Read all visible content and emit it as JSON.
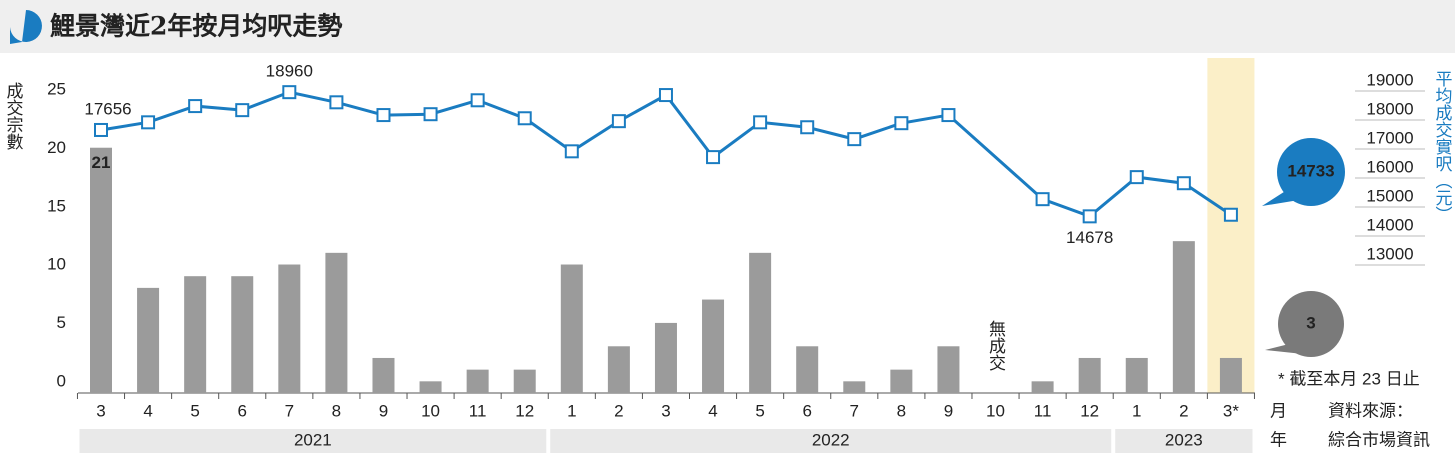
{
  "chart_data": {
    "type": "bar-line",
    "title": "鯉景灣近2年按月均呎走勢",
    "categories": [
      "3",
      "4",
      "5",
      "6",
      "7",
      "8",
      "9",
      "10",
      "11",
      "12",
      "1",
      "2",
      "3",
      "4",
      "5",
      "6",
      "7",
      "8",
      "9",
      "10",
      "11",
      "12",
      "1",
      "2",
      "3*"
    ],
    "groups": [
      {
        "label": "2021",
        "size": 10
      },
      {
        "label": "2022",
        "size": 12
      },
      {
        "label": "2023",
        "size": 3
      }
    ],
    "series": [
      {
        "name": "成交宗數",
        "type": "bar",
        "color": "#9b9b9b",
        "values": [
          21,
          9,
          10,
          10,
          11,
          12,
          3,
          1,
          2,
          2,
          11,
          4,
          6,
          8,
          12,
          4,
          1,
          2,
          4,
          0,
          1,
          3,
          3,
          13,
          3
        ],
        "labels_at": [
          0,
          24
        ]
      },
      {
        "name": "平均成交實呎",
        "type": "line",
        "axis": "y2",
        "color": "#1a7cc1",
        "connect_gaps": true,
        "values": [
          17656,
          17920,
          18480,
          18340,
          18960,
          18610,
          18170,
          18200,
          18680,
          18060,
          16920,
          17960,
          18860,
          16720,
          17920,
          17750,
          17340,
          17890,
          18170,
          null,
          15270,
          14678,
          16030,
          15820,
          14733
        ],
        "labels_at": [
          0,
          4,
          21,
          24
        ]
      }
    ],
    "ylabel": "成交宗數",
    "y2label": "平均成交實呎（元）",
    "ylim": [
      0,
      25
    ],
    "yticks": [
      0,
      5,
      10,
      15,
      20,
      25
    ],
    "y2lim": [
      13000,
      19000
    ],
    "y2ticks": [
      13000,
      14000,
      15000,
      16000,
      17000,
      18000,
      19000
    ],
    "highlight_index": 24,
    "zero_annotation": "無成交",
    "footnote": "* 截至本月 23 日止",
    "xlabel": "月",
    "group_label": "年",
    "source_label": "資料來源：",
    "source": "綜合市場資訊"
  }
}
